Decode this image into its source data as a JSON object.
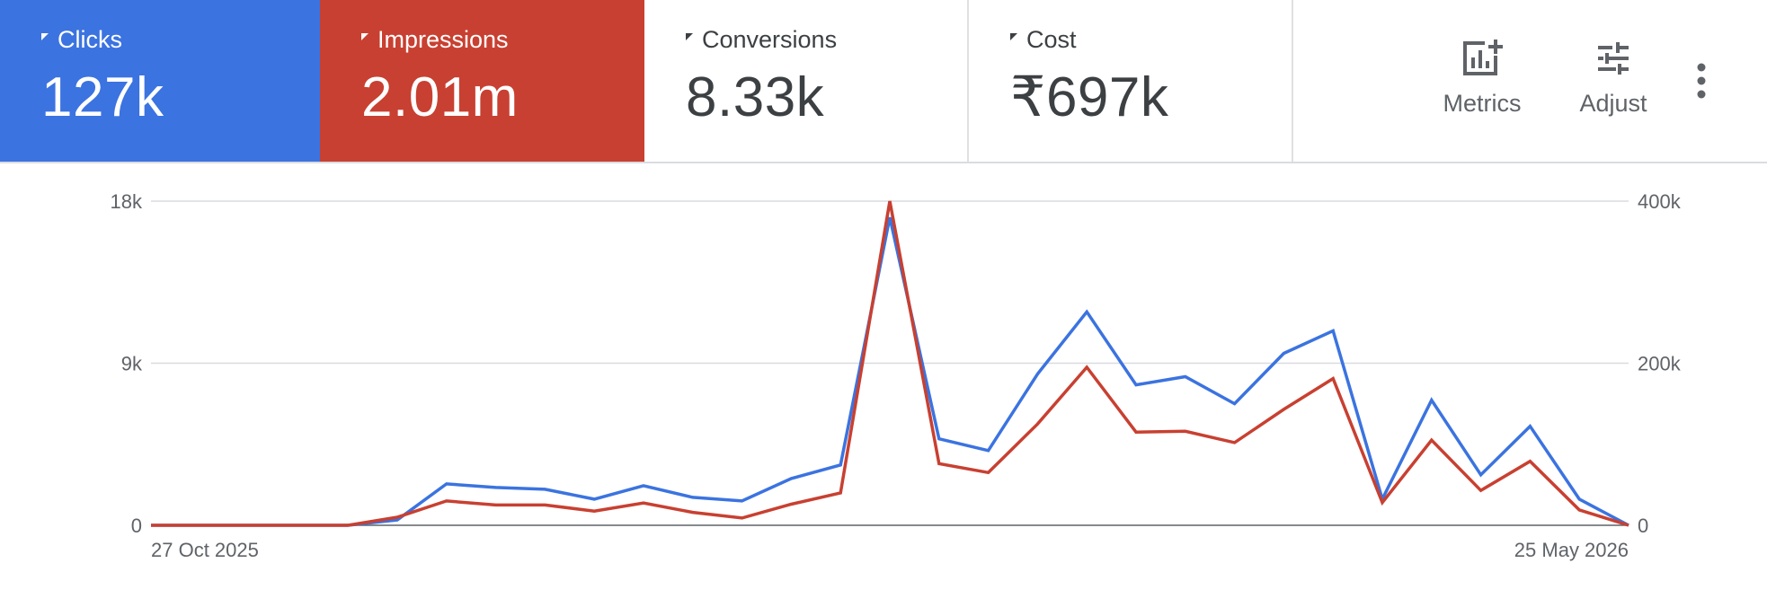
{
  "scorecards": [
    {
      "label": "Clicks",
      "value": "127k",
      "bg": "#3b73e0",
      "fg": "#ffffff"
    },
    {
      "label": "Impressions",
      "value": "2.01m",
      "bg": "#c84031",
      "fg": "#ffffff"
    },
    {
      "label": "Conversions",
      "value": "8.33k",
      "bg": "#ffffff",
      "fg": "#3c4043"
    },
    {
      "label": "Cost",
      "value": "₹697k",
      "bg": "#ffffff",
      "fg": "#3c4043"
    }
  ],
  "toolbar": {
    "metrics_label": "Metrics",
    "metrics_icon": "add-chart-icon",
    "adjust_label": "Adjust",
    "adjust_icon": "tune-sliders-icon",
    "more_icon": "more-vert-icon"
  },
  "chart_data": {
    "type": "line",
    "x": [
      "27 Oct 2025",
      "",
      "",
      "",
      "",
      "",
      "",
      "",
      "",
      "",
      "",
      "",
      "",
      "",
      "",
      "",
      "",
      "",
      "",
      "",
      "",
      "",
      "",
      "",
      "",
      "",
      "",
      "",
      "",
      "",
      "25 May 2026"
    ],
    "x_tick_labels": [
      "27 Oct 2025",
      "25 May 2026"
    ],
    "series": [
      {
        "name": "Clicks",
        "axis": "left",
        "color": "#3b73e0",
        "values": [
          0,
          0,
          0,
          0,
          0,
          300,
          2300,
          2100,
          2000,
          1450,
          2200,
          1550,
          1350,
          2600,
          3350,
          17100,
          4800,
          4150,
          8400,
          11850,
          7800,
          8250,
          6750,
          9550,
          10800,
          1450,
          6950,
          2800,
          5500,
          1450,
          0
        ]
      },
      {
        "name": "Impressions",
        "axis": "right",
        "color": "#c84031",
        "values": [
          0,
          0,
          0,
          0,
          0,
          10000,
          30000,
          25000,
          25000,
          17500,
          27500,
          16000,
          9000,
          26000,
          40000,
          400000,
          76000,
          65000,
          125000,
          195000,
          115000,
          116000,
          102000,
          143000,
          181000,
          28000,
          105000,
          43000,
          79000,
          19000,
          0
        ]
      }
    ],
    "y_left": {
      "ticks": [
        "0",
        "9k",
        "18k"
      ],
      "lim": [
        0,
        18000
      ]
    },
    "y_right": {
      "ticks": [
        "0",
        "200k",
        "400k"
      ],
      "lim": [
        0,
        400000
      ]
    },
    "grid": true
  }
}
